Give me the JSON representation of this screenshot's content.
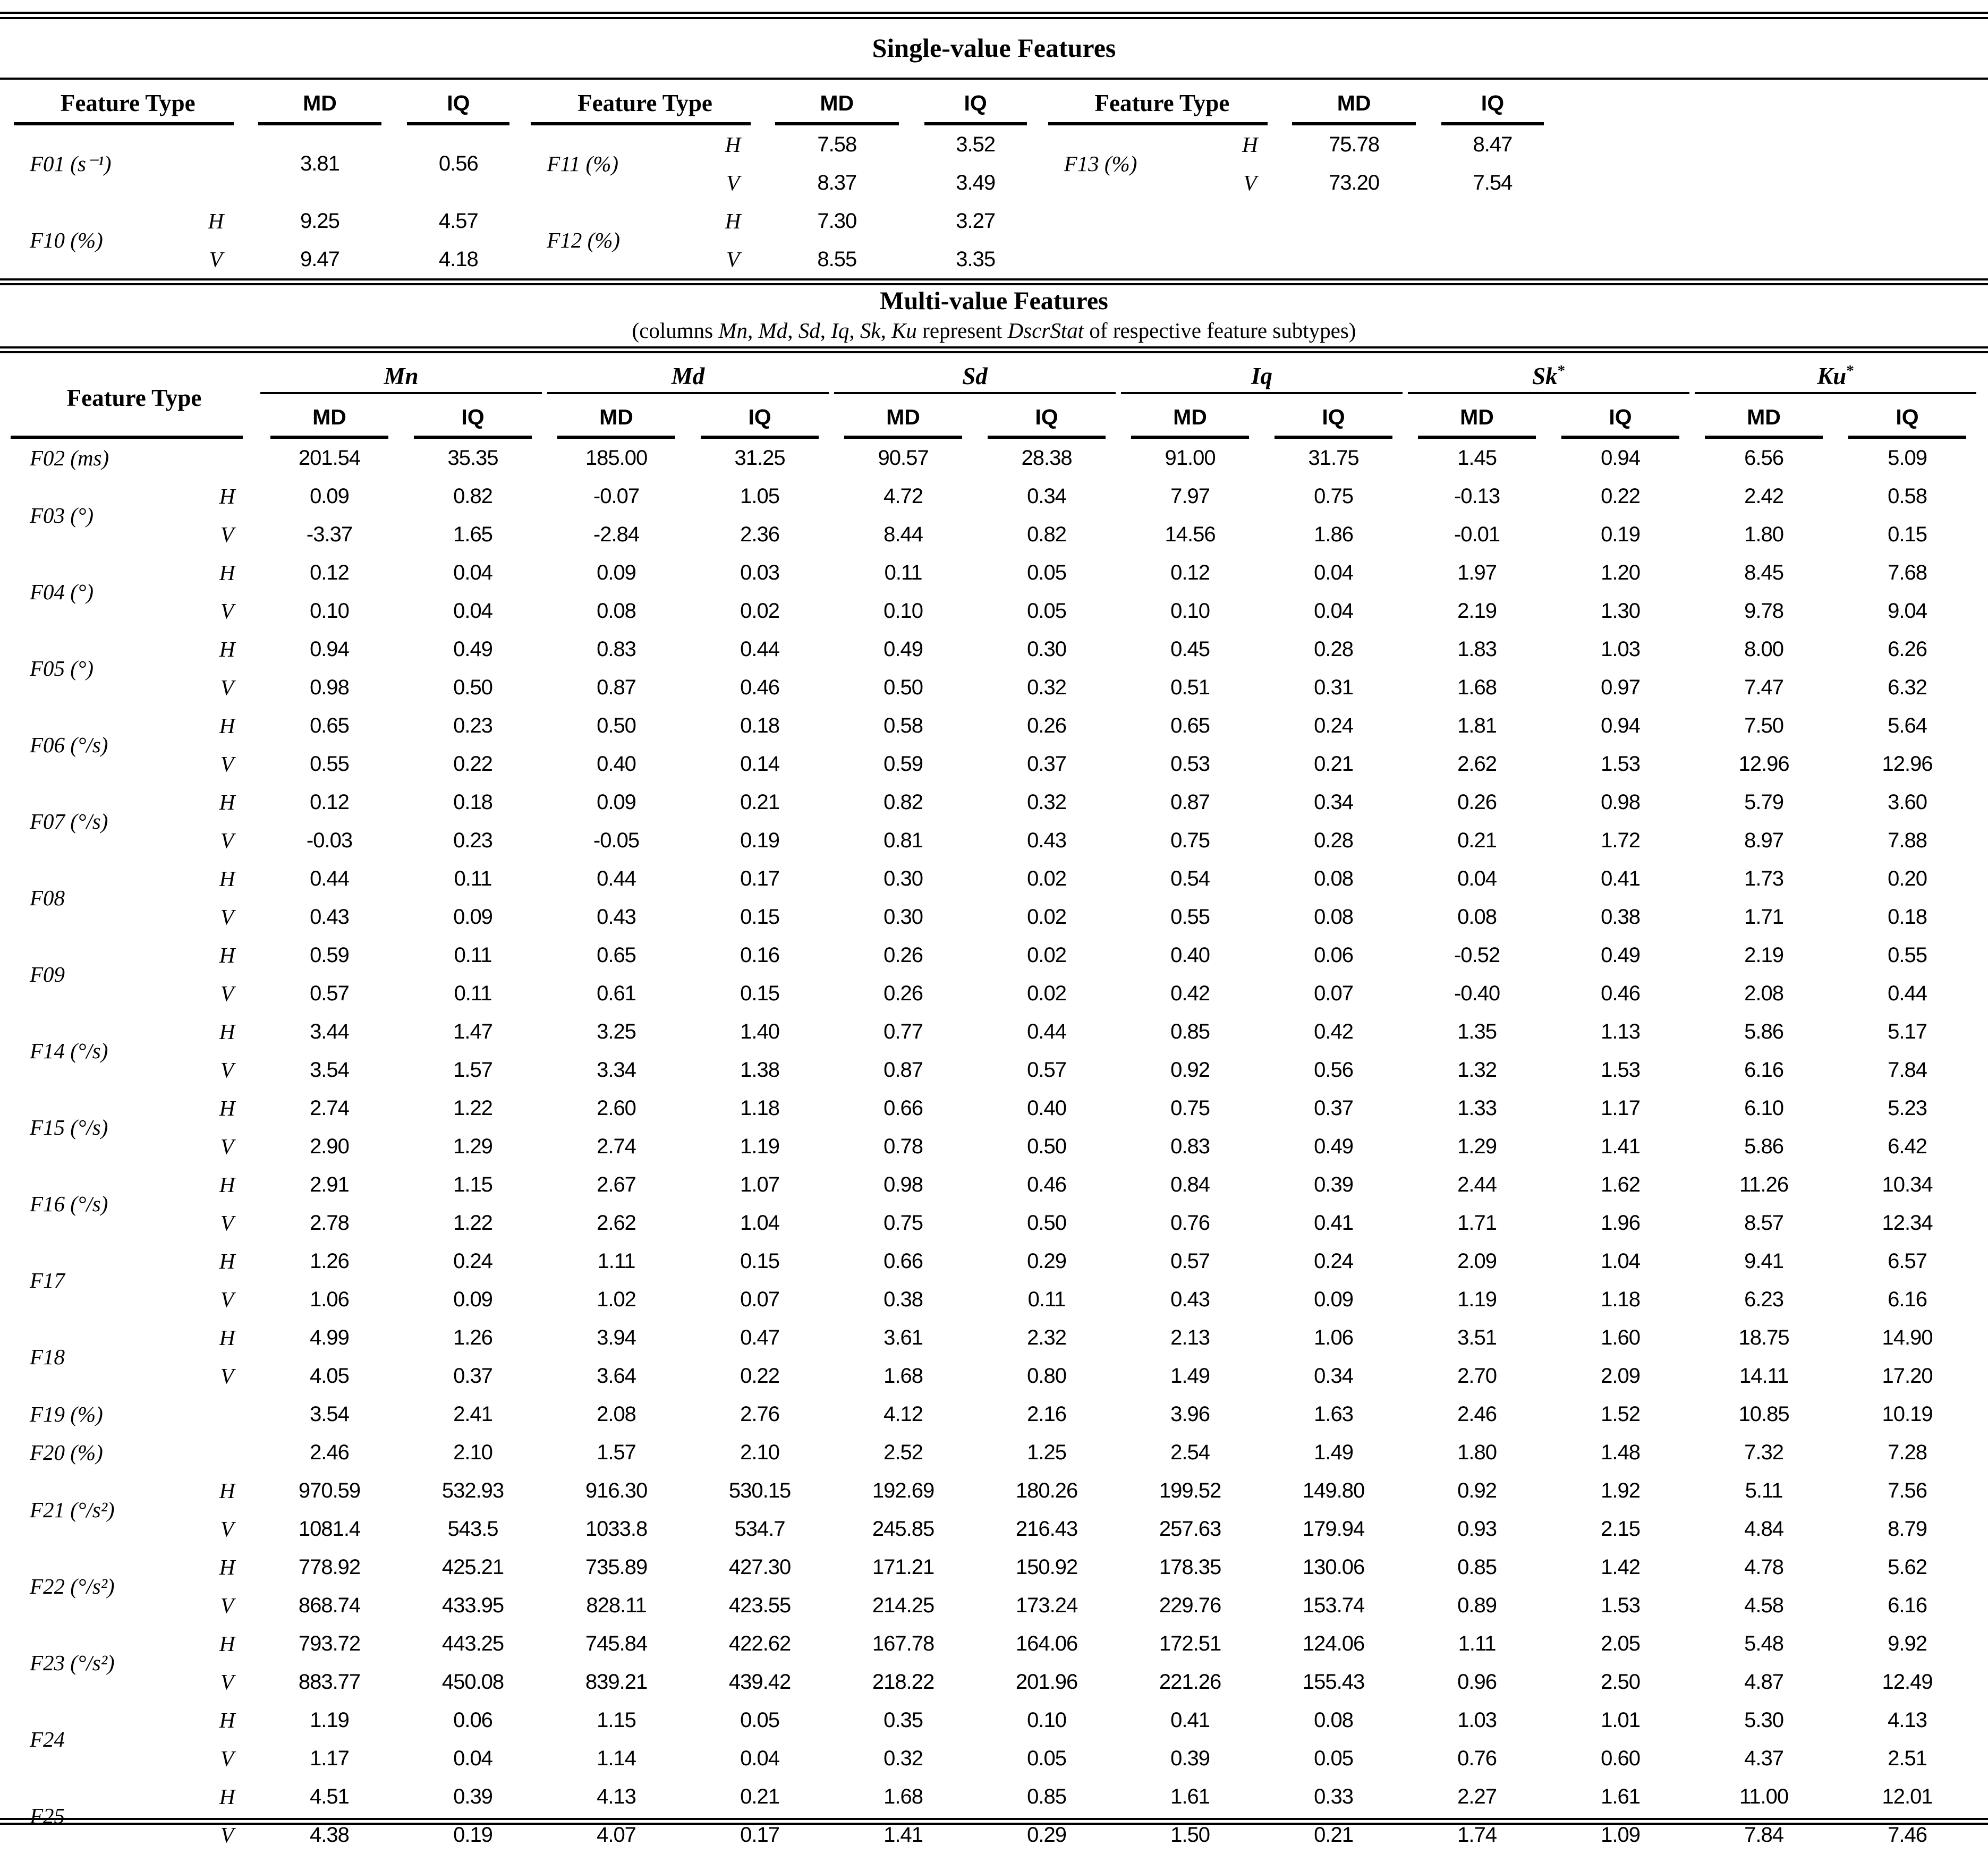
{
  "single_value": {
    "title": "Single-value Features",
    "feature_type_header": "Feature Type",
    "md_header": "MD",
    "iq_header": "IQ",
    "blocks": [
      {
        "groups": [
          {
            "name": "F01 (s⁻¹)",
            "rows": [
              [
                "",
                "3.81",
                "0.56"
              ]
            ]
          },
          {
            "name": "F11 (%)",
            "rows": [
              [
                "H",
                "7.58",
                "3.52"
              ],
              [
                "V",
                "8.37",
                "3.49"
              ]
            ]
          },
          {
            "name": "F13 (%)",
            "rows": [
              [
                "H",
                "75.78",
                "8.47"
              ],
              [
                "V",
                "73.20",
                "7.54"
              ]
            ]
          }
        ]
      },
      {
        "groups": [
          {
            "name": "F10 (%)",
            "rows": [
              [
                "H",
                "9.25",
                "4.57"
              ],
              [
                "V",
                "9.47",
                "4.18"
              ]
            ]
          },
          {
            "name": "F12 (%)",
            "rows": [
              [
                "H",
                "7.30",
                "3.27"
              ],
              [
                "V",
                "8.55",
                "3.35"
              ]
            ]
          },
          {
            "name": "",
            "rows": [
              [
                "",
                "",
                ""
              ],
              [
                "",
                "",
                ""
              ]
            ]
          }
        ]
      }
    ]
  },
  "multi_value": {
    "title": "Multi-value Features",
    "subtitle_segments": [
      {
        "t": "(columns ",
        "i": 0
      },
      {
        "t": "Mn",
        "i": 1
      },
      {
        "t": ", ",
        "i": 0
      },
      {
        "t": "Md",
        "i": 1
      },
      {
        "t": ", ",
        "i": 0
      },
      {
        "t": "Sd",
        "i": 1
      },
      {
        "t": ", ",
        "i": 0
      },
      {
        "t": "Iq",
        "i": 1
      },
      {
        "t": ", ",
        "i": 0
      },
      {
        "t": "Sk",
        "i": 1
      },
      {
        "t": ", ",
        "i": 0
      },
      {
        "t": "Ku",
        "i": 1
      },
      {
        "t": " represent ",
        "i": 0
      },
      {
        "t": "DscrStat",
        "i": 1
      },
      {
        "t": " of respective feature subtypes)",
        "i": 0
      }
    ],
    "feature_type_header": "Feature Type",
    "md_header": "MD",
    "iq_header": "IQ",
    "groups": [
      {
        "label": "Mn",
        "star": ""
      },
      {
        "label": "Md",
        "star": ""
      },
      {
        "label": "Sd",
        "star": ""
      },
      {
        "label": "Iq",
        "star": ""
      },
      {
        "label": "Sk",
        "star": "*"
      },
      {
        "label": "Ku",
        "star": "*"
      }
    ],
    "features": [
      {
        "name": "F02 (ms)",
        "rows": [
          {
            "hv": "",
            "values": [
              "201.54",
              "35.35",
              "185.00",
              "31.25",
              "90.57",
              "28.38",
              "91.00",
              "31.75",
              "1.45",
              "0.94",
              "6.56",
              "5.09"
            ]
          }
        ]
      },
      {
        "name": "F03 (°)",
        "rows": [
          {
            "hv": "H",
            "values": [
              "0.09",
              "0.82",
              "-0.07",
              "1.05",
              "4.72",
              "0.34",
              "7.97",
              "0.75",
              "-0.13",
              "0.22",
              "2.42",
              "0.58"
            ]
          },
          {
            "hv": "V",
            "values": [
              "-3.37",
              "1.65",
              "-2.84",
              "2.36",
              "8.44",
              "0.82",
              "14.56",
              "1.86",
              "-0.01",
              "0.19",
              "1.80",
              "0.15"
            ]
          }
        ]
      },
      {
        "name": "F04 (°)",
        "rows": [
          {
            "hv": "H",
            "values": [
              "0.12",
              "0.04",
              "0.09",
              "0.03",
              "0.11",
              "0.05",
              "0.12",
              "0.04",
              "1.97",
              "1.20",
              "8.45",
              "7.68"
            ]
          },
          {
            "hv": "V",
            "values": [
              "0.10",
              "0.04",
              "0.08",
              "0.02",
              "0.10",
              "0.05",
              "0.10",
              "0.04",
              "2.19",
              "1.30",
              "9.78",
              "9.04"
            ]
          }
        ]
      },
      {
        "name": "F05 (°)",
        "rows": [
          {
            "hv": "H",
            "values": [
              "0.94",
              "0.49",
              "0.83",
              "0.44",
              "0.49",
              "0.30",
              "0.45",
              "0.28",
              "1.83",
              "1.03",
              "8.00",
              "6.26"
            ]
          },
          {
            "hv": "V",
            "values": [
              "0.98",
              "0.50",
              "0.87",
              "0.46",
              "0.50",
              "0.32",
              "0.51",
              "0.31",
              "1.68",
              "0.97",
              "7.47",
              "6.32"
            ]
          }
        ]
      },
      {
        "name": "F06 (°/s)",
        "rows": [
          {
            "hv": "H",
            "values": [
              "0.65",
              "0.23",
              "0.50",
              "0.18",
              "0.58",
              "0.26",
              "0.65",
              "0.24",
              "1.81",
              "0.94",
              "7.50",
              "5.64"
            ]
          },
          {
            "hv": "V",
            "values": [
              "0.55",
              "0.22",
              "0.40",
              "0.14",
              "0.59",
              "0.37",
              "0.53",
              "0.21",
              "2.62",
              "1.53",
              "12.96",
              "12.96"
            ]
          }
        ]
      },
      {
        "name": "F07 (°/s)",
        "rows": [
          {
            "hv": "H",
            "values": [
              "0.12",
              "0.18",
              "0.09",
              "0.21",
              "0.82",
              "0.32",
              "0.87",
              "0.34",
              "0.26",
              "0.98",
              "5.79",
              "3.60"
            ]
          },
          {
            "hv": "V",
            "values": [
              "-0.03",
              "0.23",
              "-0.05",
              "0.19",
              "0.81",
              "0.43",
              "0.75",
              "0.28",
              "0.21",
              "1.72",
              "8.97",
              "7.88"
            ]
          }
        ]
      },
      {
        "name": "F08",
        "rows": [
          {
            "hv": "H",
            "values": [
              "0.44",
              "0.11",
              "0.44",
              "0.17",
              "0.30",
              "0.02",
              "0.54",
              "0.08",
              "0.04",
              "0.41",
              "1.73",
              "0.20"
            ]
          },
          {
            "hv": "V",
            "values": [
              "0.43",
              "0.09",
              "0.43",
              "0.15",
              "0.30",
              "0.02",
              "0.55",
              "0.08",
              "0.08",
              "0.38",
              "1.71",
              "0.18"
            ]
          }
        ]
      },
      {
        "name": "F09",
        "rows": [
          {
            "hv": "H",
            "values": [
              "0.59",
              "0.11",
              "0.65",
              "0.16",
              "0.26",
              "0.02",
              "0.40",
              "0.06",
              "-0.52",
              "0.49",
              "2.19",
              "0.55"
            ]
          },
          {
            "hv": "V",
            "values": [
              "0.57",
              "0.11",
              "0.61",
              "0.15",
              "0.26",
              "0.02",
              "0.42",
              "0.07",
              "-0.40",
              "0.46",
              "2.08",
              "0.44"
            ]
          }
        ]
      },
      {
        "name": "F14 (°/s)",
        "rows": [
          {
            "hv": "H",
            "values": [
              "3.44",
              "1.47",
              "3.25",
              "1.40",
              "0.77",
              "0.44",
              "0.85",
              "0.42",
              "1.35",
              "1.13",
              "5.86",
              "5.17"
            ]
          },
          {
            "hv": "V",
            "values": [
              "3.54",
              "1.57",
              "3.34",
              "1.38",
              "0.87",
              "0.57",
              "0.92",
              "0.56",
              "1.32",
              "1.53",
              "6.16",
              "7.84"
            ]
          }
        ]
      },
      {
        "name": "F15 (°/s)",
        "rows": [
          {
            "hv": "H",
            "values": [
              "2.74",
              "1.22",
              "2.60",
              "1.18",
              "0.66",
              "0.40",
              "0.75",
              "0.37",
              "1.33",
              "1.17",
              "6.10",
              "5.23"
            ]
          },
          {
            "hv": "V",
            "values": [
              "2.90",
              "1.29",
              "2.74",
              "1.19",
              "0.78",
              "0.50",
              "0.83",
              "0.49",
              "1.29",
              "1.41",
              "5.86",
              "6.42"
            ]
          }
        ]
      },
      {
        "name": "F16 (°/s)",
        "rows": [
          {
            "hv": "H",
            "values": [
              "2.91",
              "1.15",
              "2.67",
              "1.07",
              "0.98",
              "0.46",
              "0.84",
              "0.39",
              "2.44",
              "1.62",
              "11.26",
              "10.34"
            ]
          },
          {
            "hv": "V",
            "values": [
              "2.78",
              "1.22",
              "2.62",
              "1.04",
              "0.75",
              "0.50",
              "0.76",
              "0.41",
              "1.71",
              "1.96",
              "8.57",
              "12.34"
            ]
          }
        ]
      },
      {
        "name": "F17",
        "rows": [
          {
            "hv": "H",
            "values": [
              "1.26",
              "0.24",
              "1.11",
              "0.15",
              "0.66",
              "0.29",
              "0.57",
              "0.24",
              "2.09",
              "1.04",
              "9.41",
              "6.57"
            ]
          },
          {
            "hv": "V",
            "values": [
              "1.06",
              "0.09",
              "1.02",
              "0.07",
              "0.38",
              "0.11",
              "0.43",
              "0.09",
              "1.19",
              "1.18",
              "6.23",
              "6.16"
            ]
          }
        ]
      },
      {
        "name": "F18",
        "rows": [
          {
            "hv": "H",
            "values": [
              "4.99",
              "1.26",
              "3.94",
              "0.47",
              "3.61",
              "2.32",
              "2.13",
              "1.06",
              "3.51",
              "1.60",
              "18.75",
              "14.90"
            ]
          },
          {
            "hv": "V",
            "values": [
              "4.05",
              "0.37",
              "3.64",
              "0.22",
              "1.68",
              "0.80",
              "1.49",
              "0.34",
              "2.70",
              "2.09",
              "14.11",
              "17.20"
            ]
          }
        ]
      },
      {
        "name": "F19 (%)",
        "rows": [
          {
            "hv": "",
            "values": [
              "3.54",
              "2.41",
              "2.08",
              "2.76",
              "4.12",
              "2.16",
              "3.96",
              "1.63",
              "2.46",
              "1.52",
              "10.85",
              "10.19"
            ]
          }
        ]
      },
      {
        "name": "F20 (%)",
        "rows": [
          {
            "hv": "",
            "values": [
              "2.46",
              "2.10",
              "1.57",
              "2.10",
              "2.52",
              "1.25",
              "2.54",
              "1.49",
              "1.80",
              "1.48",
              "7.32",
              "7.28"
            ]
          }
        ]
      },
      {
        "name": "F21 (°/s²)",
        "rows": [
          {
            "hv": "H",
            "values": [
              "970.59",
              "532.93",
              "916.30",
              "530.15",
              "192.69",
              "180.26",
              "199.52",
              "149.80",
              "0.92",
              "1.92",
              "5.11",
              "7.56"
            ]
          },
          {
            "hv": "V",
            "values": [
              "1081.4",
              "543.5",
              "1033.8",
              "534.7",
              "245.85",
              "216.43",
              "257.63",
              "179.94",
              "0.93",
              "2.15",
              "4.84",
              "8.79"
            ]
          }
        ]
      },
      {
        "name": "F22 (°/s²)",
        "rows": [
          {
            "hv": "H",
            "values": [
              "778.92",
              "425.21",
              "735.89",
              "427.30",
              "171.21",
              "150.92",
              "178.35",
              "130.06",
              "0.85",
              "1.42",
              "4.78",
              "5.62"
            ]
          },
          {
            "hv": "V",
            "values": [
              "868.74",
              "433.95",
              "828.11",
              "423.55",
              "214.25",
              "173.24",
              "229.76",
              "153.74",
              "0.89",
              "1.53",
              "4.58",
              "6.16"
            ]
          }
        ]
      },
      {
        "name": "F23 (°/s²)",
        "rows": [
          {
            "hv": "H",
            "values": [
              "793.72",
              "443.25",
              "745.84",
              "422.62",
              "167.78",
              "164.06",
              "172.51",
              "124.06",
              "1.11",
              "2.05",
              "5.48",
              "9.92"
            ]
          },
          {
            "hv": "V",
            "values": [
              "883.77",
              "450.08",
              "839.21",
              "439.42",
              "218.22",
              "201.96",
              "221.26",
              "155.43",
              "0.96",
              "2.50",
              "4.87",
              "12.49"
            ]
          }
        ]
      },
      {
        "name": "F24",
        "rows": [
          {
            "hv": "H",
            "values": [
              "1.19",
              "0.06",
              "1.15",
              "0.05",
              "0.35",
              "0.10",
              "0.41",
              "0.08",
              "1.03",
              "1.01",
              "5.30",
              "4.13"
            ]
          },
          {
            "hv": "V",
            "values": [
              "1.17",
              "0.04",
              "1.14",
              "0.04",
              "0.32",
              "0.05",
              "0.39",
              "0.05",
              "0.76",
              "0.60",
              "4.37",
              "2.51"
            ]
          }
        ]
      },
      {
        "name": "F25",
        "rows": [
          {
            "hv": "H",
            "values": [
              "4.51",
              "0.39",
              "4.13",
              "0.21",
              "1.68",
              "0.85",
              "1.61",
              "0.33",
              "2.27",
              "1.61",
              "11.00",
              "12.01"
            ]
          },
          {
            "hv": "V",
            "values": [
              "4.38",
              "0.19",
              "4.07",
              "0.17",
              "1.41",
              "0.29",
              "1.50",
              "0.21",
              "1.74",
              "1.09",
              "7.84",
              "7.46"
            ]
          }
        ]
      }
    ]
  }
}
